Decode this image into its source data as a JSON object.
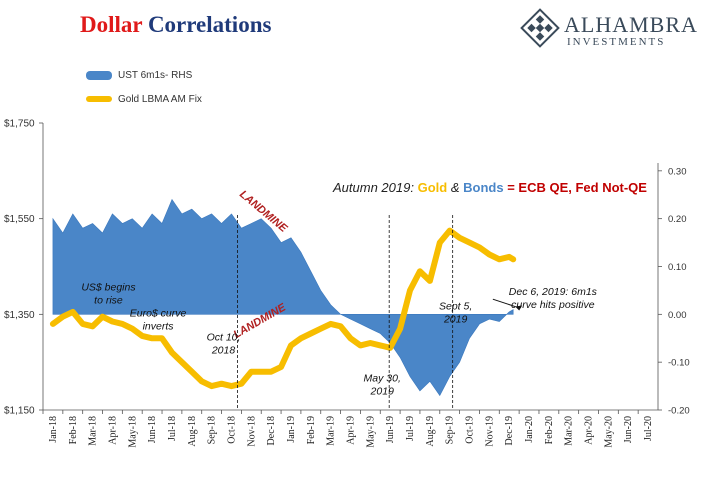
{
  "header": {
    "title_part1": "Dollar",
    "title_part2": "Correlations",
    "logo_name": "ALHAMBRA",
    "logo_sub": "INVESTMENTS"
  },
  "headline": {
    "prefix": "Autumn 2019:",
    "gold": "Gold",
    "amp": "&",
    "bonds": "Bonds",
    "eq": "=",
    "ecb": "ECB QE, Fed Not-QE"
  },
  "colors": {
    "title_red": "#e01a1a",
    "title_navy": "#1f3a7a",
    "gold": "#f7bd00",
    "bonds_fill": "#4a86c8",
    "landmine": "#b02020"
  },
  "chart_data": {
    "type": "area",
    "left_axis": {
      "ylim": [
        1150,
        1750
      ],
      "ticks": [
        "$1,150",
        "$1,350",
        "$1,550",
        "$1,750"
      ],
      "tick_values": [
        1150,
        1350,
        1550,
        1750
      ]
    },
    "right_axis": {
      "ylim": [
        -0.2,
        0.4
      ],
      "ticks": [
        "-0.20",
        "-0.10",
        "0.00",
        "0.10",
        "0.20",
        "0.30"
      ],
      "tick_values": [
        -0.2,
        -0.1,
        0.0,
        0.1,
        0.2,
        0.3
      ]
    },
    "x_categories": [
      "Jan-18",
      "Feb-18",
      "Mar-18",
      "Apr-18",
      "May-18",
      "Jun-18",
      "Jul-18",
      "Aug-18",
      "Sep-18",
      "Oct-18",
      "Nov-18",
      "Dec-18",
      "Jan-19",
      "Feb-19",
      "Mar-19",
      "Apr-19",
      "May-19",
      "Jun-19",
      "Jul-19",
      "Aug-19",
      "Sep-19",
      "Oct-19",
      "Nov-19",
      "Dec-19",
      "Jan-20",
      "Feb-20",
      "Mar-20",
      "Apr-20",
      "May-20",
      "Jun-20",
      "Jul-20"
    ],
    "series": [
      {
        "name": "UST 6m1s- RHS",
        "axis": "right",
        "x": [
          0,
          0.5,
          1,
          1.5,
          2,
          2.5,
          3,
          3.5,
          4,
          4.5,
          5,
          5.5,
          6,
          6.5,
          7,
          7.5,
          8,
          8.5,
          9,
          9.5,
          10,
          10.5,
          11,
          11.5,
          12,
          12.5,
          13,
          13.5,
          14,
          14.5,
          15,
          15.5,
          16,
          16.5,
          17,
          17.5,
          18,
          18.5,
          19,
          19.5,
          20,
          20.5,
          21,
          21.5,
          22,
          22.5,
          23,
          23.2
        ],
        "values": [
          0.2,
          0.17,
          0.21,
          0.18,
          0.19,
          0.17,
          0.21,
          0.19,
          0.2,
          0.18,
          0.21,
          0.19,
          0.24,
          0.21,
          0.22,
          0.2,
          0.21,
          0.19,
          0.21,
          0.18,
          0.19,
          0.2,
          0.18,
          0.15,
          0.16,
          0.13,
          0.09,
          0.05,
          0.02,
          0.0,
          -0.01,
          -0.02,
          -0.03,
          -0.04,
          -0.06,
          -0.09,
          -0.13,
          -0.16,
          -0.14,
          -0.17,
          -0.13,
          -0.1,
          -0.05,
          -0.02,
          -0.01,
          -0.015,
          0.005,
          0.01
        ]
      },
      {
        "name": "Gold LBMA AM Fix",
        "axis": "left",
        "x": [
          0,
          0.5,
          1,
          1.5,
          2,
          2.5,
          3,
          3.5,
          4,
          4.5,
          5,
          5.5,
          6,
          6.5,
          7,
          7.5,
          8,
          8.5,
          9,
          9.5,
          10,
          10.5,
          11,
          11.5,
          12,
          12.5,
          13,
          13.5,
          14,
          14.5,
          15,
          15.5,
          16,
          16.5,
          17,
          17.5,
          18,
          18.5,
          19,
          19.5,
          20,
          20.5,
          21,
          21.5,
          22,
          22.5,
          23,
          23.2
        ],
        "values": [
          1330,
          1345,
          1355,
          1330,
          1325,
          1345,
          1335,
          1330,
          1320,
          1305,
          1300,
          1300,
          1270,
          1250,
          1230,
          1210,
          1200,
          1205,
          1200,
          1205,
          1230,
          1230,
          1230,
          1240,
          1285,
          1300,
          1310,
          1320,
          1330,
          1325,
          1300,
          1285,
          1290,
          1285,
          1280,
          1320,
          1400,
          1440,
          1420,
          1500,
          1525,
          1510,
          1500,
          1490,
          1475,
          1465,
          1470,
          1465
        ]
      }
    ],
    "annotations": [
      {
        "text": "LANDMINE",
        "x": 10.5,
        "y_axis": "left",
        "y": 1560
      },
      {
        "text": "LANDMINE",
        "x": 10.5,
        "y_axis": "left",
        "y": 1330
      },
      {
        "text": "US$ begins to rise",
        "x": 2.8,
        "y_axis": "left",
        "y": 1400
      },
      {
        "text": "Euro$ curve inverts",
        "x": 5.3,
        "y_axis": "left",
        "y": 1345
      },
      {
        "text": "Oct 10, 2018",
        "x": 8.6,
        "y_axis": "left",
        "y": 1295
      },
      {
        "text": "May 30, 2019",
        "x": 16.6,
        "y_axis": "left",
        "y": 1210
      },
      {
        "text": "Sept 5, 2019",
        "x": 20.3,
        "y_axis": "left",
        "y": 1360
      },
      {
        "text": "Dec 6, 2019: 6m1s curve hits positive",
        "x": 25.2,
        "y_axis": "left",
        "y": 1390
      }
    ],
    "vlines": [
      9.3,
      16.95,
      20.15
    ]
  }
}
